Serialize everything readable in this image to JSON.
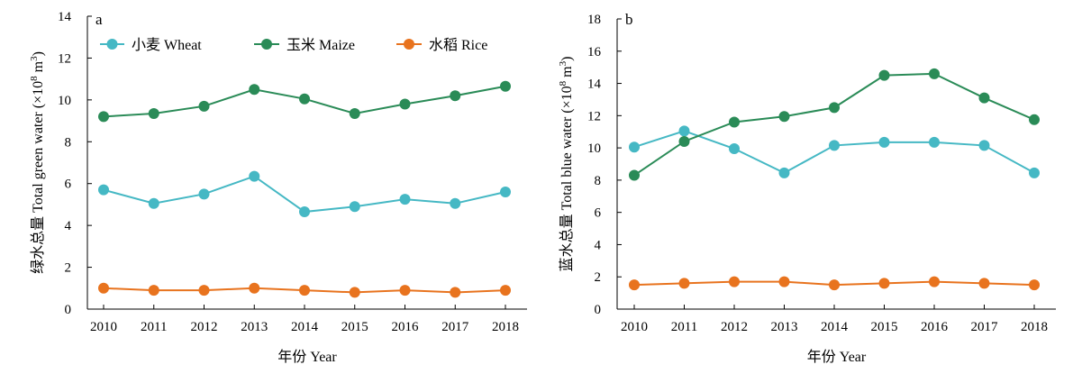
{
  "colors": {
    "Wheat": "#45b8c4",
    "Maize": "#2a8b57",
    "Rice": "#e8731e"
  },
  "chart_data": [
    {
      "panel": "a",
      "type": "line",
      "x": [
        "2010",
        "2011",
        "2012",
        "2013",
        "2014",
        "2015",
        "2016",
        "2017",
        "2018"
      ],
      "xlabel": "年份 Year",
      "ylabel_parts": [
        "绿水总量 Total green water (×10",
        "8",
        " m",
        "3",
        ")"
      ],
      "ylim": [
        0,
        14
      ],
      "yticks": [
        0,
        2,
        4,
        6,
        8,
        10,
        12,
        14
      ],
      "legend": "top",
      "series": [
        {
          "key": "Wheat",
          "name": "小麦 Wheat",
          "values": [
            5.7,
            5.05,
            5.5,
            6.35,
            4.65,
            4.9,
            5.25,
            5.05,
            5.6
          ]
        },
        {
          "key": "Maize",
          "name": "玉米 Maize",
          "values": [
            9.2,
            9.35,
            9.7,
            10.5,
            10.05,
            9.35,
            9.8,
            10.2,
            10.65
          ]
        },
        {
          "key": "Rice",
          "name": "水稻 Rice",
          "values": [
            1.0,
            0.9,
            0.9,
            1.0,
            0.9,
            0.8,
            0.9,
            0.8,
            0.9
          ]
        }
      ]
    },
    {
      "panel": "b",
      "type": "line",
      "x": [
        "2010",
        "2011",
        "2012",
        "2013",
        "2014",
        "2015",
        "2016",
        "2017",
        "2018"
      ],
      "xlabel": "年份 Year",
      "ylabel_parts": [
        "蓝水总量 Total blue water (×10",
        "8",
        " m",
        "3",
        ")"
      ],
      "ylim": [
        0,
        18
      ],
      "yticks": [
        0,
        2,
        4,
        6,
        8,
        10,
        12,
        14,
        16,
        18
      ],
      "series": [
        {
          "key": "Wheat",
          "name": "小麦 Wheat",
          "values": [
            10.05,
            11.05,
            9.95,
            8.45,
            10.15,
            10.35,
            10.35,
            10.15,
            8.45
          ]
        },
        {
          "key": "Maize",
          "name": "玉米 Maize",
          "values": [
            8.3,
            10.4,
            11.6,
            11.95,
            12.5,
            14.5,
            14.6,
            13.1,
            11.75
          ]
        },
        {
          "key": "Rice",
          "name": "水稻 Rice",
          "values": [
            1.5,
            1.6,
            1.7,
            1.7,
            1.5,
            1.6,
            1.7,
            1.6,
            1.5
          ]
        }
      ]
    }
  ]
}
